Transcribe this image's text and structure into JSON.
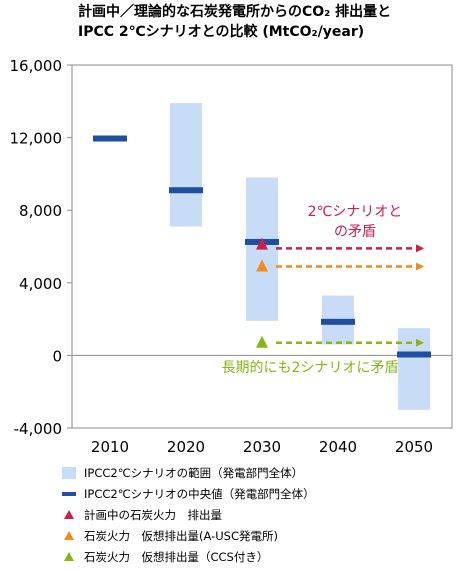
{
  "title": {
    "line1": "計画中／理論的な石炭発電所からのCO₂ 排出量と",
    "line2": "IPCC 2℃シナリオとの比較 (MtCO₂/year)"
  },
  "chart_data": {
    "type": "range-bar",
    "categories": [
      "2010",
      "2020",
      "2030",
      "2040",
      "2050"
    ],
    "yticks": [
      "16,000",
      "12,000",
      "8,000",
      "4,000",
      "0",
      "-4,000"
    ],
    "ylim": [
      -4000,
      16000
    ],
    "ytick_values": [
      16000,
      12000,
      8000,
      4000,
      0,
      -4000
    ],
    "series": [
      {
        "name": "IPCC2℃シナリオの範囲（発電部門全体）",
        "kind": "range",
        "values": [
          [
            11800,
            12100
          ],
          [
            7100,
            13900
          ],
          [
            1900,
            9800
          ],
          [
            600,
            3300
          ],
          [
            -3000,
            1500
          ]
        ]
      },
      {
        "name": "IPCC2℃シナリオの中央値（発電部門全体）",
        "kind": "median",
        "values": [
          11950,
          9100,
          6250,
          1850,
          50
        ]
      },
      {
        "name": "計画中の石炭火力　排出量",
        "kind": "triangle",
        "color": "#cc1f4e",
        "category": "2030",
        "value": 6100
      },
      {
        "name": "石炭火力　仮想排出量(A-USC発電所)",
        "kind": "triangle",
        "color": "#f28a1e",
        "category": "2030",
        "value": 4900
      },
      {
        "name": "石炭火力　仮想排出量（CCS付き）",
        "kind": "triangle",
        "color": "#86b719",
        "category": "2030",
        "value": 700
      }
    ],
    "arrows": [
      {
        "from": "2030",
        "to": "2050",
        "value": 5900,
        "color": "#cc1f4e"
      },
      {
        "from": "2030",
        "to": "2050",
        "value": 4900,
        "color": "#f28a1e"
      },
      {
        "from": "2030",
        "to": "2050",
        "value": 700,
        "color": "#86b719"
      }
    ],
    "annotations": [
      {
        "text": "2℃シナリオと",
        "color": "#cc1f4e"
      },
      {
        "text": "の矛盾",
        "color": "#cc1f4e"
      },
      {
        "text": "長期的にも2シナリオに矛盾",
        "color": "#86b719"
      }
    ]
  },
  "colors": {
    "range": "#c9dcf7",
    "median": "#1f4ea3",
    "planned": "#cc1f4e",
    "ausc": "#f28a1e",
    "ccs": "#86b719"
  }
}
